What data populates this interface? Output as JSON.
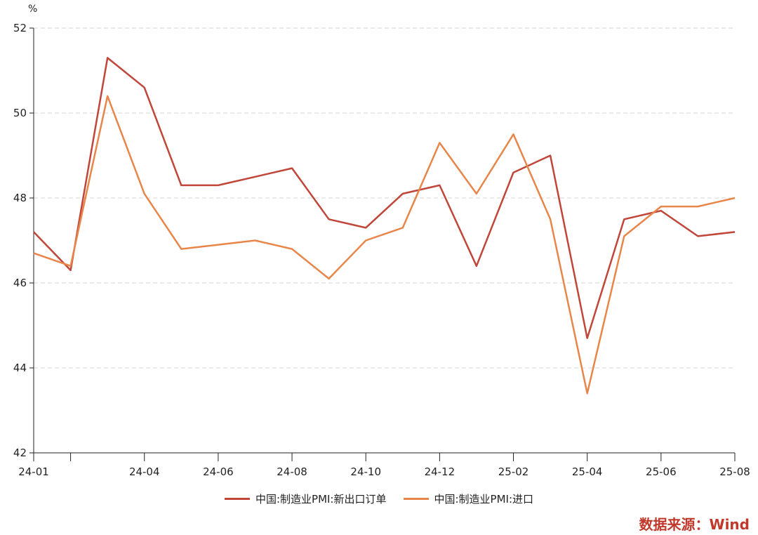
{
  "chart_data": {
    "type": "line",
    "unit": "%",
    "ylim": [
      42,
      52
    ],
    "yticks": [
      42,
      44,
      46,
      48,
      50,
      52
    ],
    "grid": true,
    "legend_position": "bottom",
    "x": [
      "24-01",
      "24-02",
      "24-03",
      "24-04",
      "24-05",
      "24-06",
      "24-07",
      "24-08",
      "24-09",
      "24-10",
      "24-11",
      "24-12",
      "25-01",
      "25-02",
      "25-03",
      "25-04",
      "25-05",
      "25-06",
      "25-07",
      "25-08"
    ],
    "xtick_labels": [
      "24-01",
      "",
      "24-04",
      "24-06",
      "24-08",
      "24-10",
      "24-12",
      "25-02",
      "25-04",
      "25-06",
      "25-08"
    ],
    "xtick_indices": [
      0,
      1,
      3,
      5,
      7,
      9,
      11,
      13,
      15,
      17,
      19
    ],
    "series": [
      {
        "name": "中国:制造业PMI:新出口订单",
        "color": "#c0463a",
        "values": [
          47.2,
          46.3,
          51.3,
          50.6,
          48.3,
          48.3,
          48.5,
          48.7,
          47.5,
          47.3,
          48.1,
          48.3,
          46.4,
          48.6,
          49.0,
          44.7,
          47.5,
          47.7,
          47.1,
          47.2
        ]
      },
      {
        "name": "中国:制造业PMI:进口",
        "color": "#e8864a",
        "values": [
          46.7,
          46.4,
          50.4,
          48.1,
          46.8,
          46.9,
          47.0,
          46.8,
          46.1,
          47.0,
          47.3,
          49.3,
          48.1,
          49.5,
          47.5,
          43.4,
          47.1,
          47.8,
          47.8,
          48.0
        ]
      }
    ]
  },
  "source": {
    "text": "数据来源：Wind",
    "color": "#c0392b"
  }
}
